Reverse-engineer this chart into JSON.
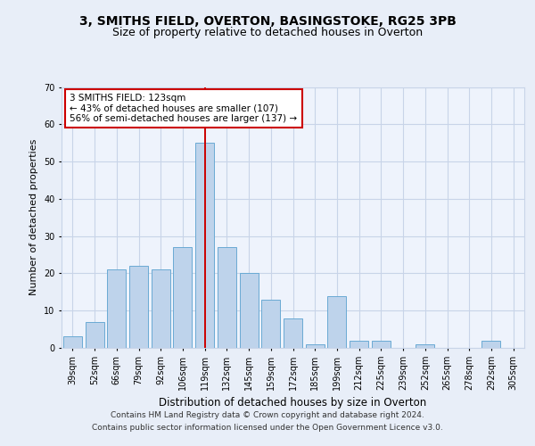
{
  "title1": "3, SMITHS FIELD, OVERTON, BASINGSTOKE, RG25 3PB",
  "title2": "Size of property relative to detached houses in Overton",
  "xlabel": "Distribution of detached houses by size in Overton",
  "ylabel": "Number of detached properties",
  "categories": [
    "39sqm",
    "52sqm",
    "66sqm",
    "79sqm",
    "92sqm",
    "106sqm",
    "119sqm",
    "132sqm",
    "145sqm",
    "159sqm",
    "172sqm",
    "185sqm",
    "199sqm",
    "212sqm",
    "225sqm",
    "239sqm",
    "252sqm",
    "265sqm",
    "278sqm",
    "292sqm",
    "305sqm"
  ],
  "values": [
    3,
    7,
    21,
    22,
    21,
    27,
    55,
    27,
    20,
    13,
    8,
    1,
    14,
    2,
    2,
    0,
    1,
    0,
    0,
    2,
    0
  ],
  "bar_color": "#bed3eb",
  "bar_edge_color": "#6aaad4",
  "vline_index": 6,
  "vline_color": "#cc0000",
  "annotation_text": "3 SMITHS FIELD: 123sqm\n← 43% of detached houses are smaller (107)\n56% of semi-detached houses are larger (137) →",
  "annotation_box_color": "#ffffff",
  "annotation_box_edge_color": "#cc0000",
  "ylim": [
    0,
    70
  ],
  "yticks": [
    0,
    10,
    20,
    30,
    40,
    50,
    60,
    70
  ],
  "grid_color": "#c8d4e8",
  "background_color": "#e8eef8",
  "plot_background_color": "#eef3fc",
  "footer_text": "Contains HM Land Registry data © Crown copyright and database right 2024.\nContains public sector information licensed under the Open Government Licence v3.0.",
  "title1_fontsize": 10,
  "title2_fontsize": 9,
  "xlabel_fontsize": 8.5,
  "ylabel_fontsize": 8,
  "tick_fontsize": 7,
  "annotation_fontsize": 7.5,
  "footer_fontsize": 6.5
}
